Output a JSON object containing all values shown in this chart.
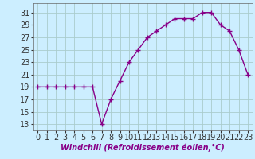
{
  "hours": [
    0,
    1,
    2,
    3,
    4,
    5,
    6,
    7,
    8,
    9,
    10,
    11,
    12,
    13,
    14,
    15,
    16,
    17,
    18,
    19,
    20,
    21,
    22,
    23
  ],
  "temps": [
    19,
    19,
    19,
    19,
    19,
    19,
    19,
    13,
    17,
    20,
    23,
    25,
    27,
    28,
    29,
    30,
    30,
    30,
    31,
    31,
    29,
    28,
    25,
    21
  ],
  "yticks": [
    13,
    15,
    17,
    19,
    21,
    23,
    25,
    27,
    29,
    31
  ],
  "xtick_labels": [
    "0",
    "1",
    "2",
    "3",
    "4",
    "5",
    "6",
    "7",
    "8",
    "9",
    "10",
    "11",
    "12",
    "13",
    "14",
    "15",
    "16",
    "17",
    "18",
    "19",
    "20",
    "21",
    "22",
    "23"
  ],
  "xlabel": "Windchill (Refroidissement éolien,°C)",
  "line_color": "#880088",
  "bg_color": "#cceeff",
  "grid_color": "#aacccc",
  "marker": "+",
  "markersize": 4,
  "linewidth": 1.0,
  "tick_fontsize": 7,
  "xlabel_fontsize": 7
}
